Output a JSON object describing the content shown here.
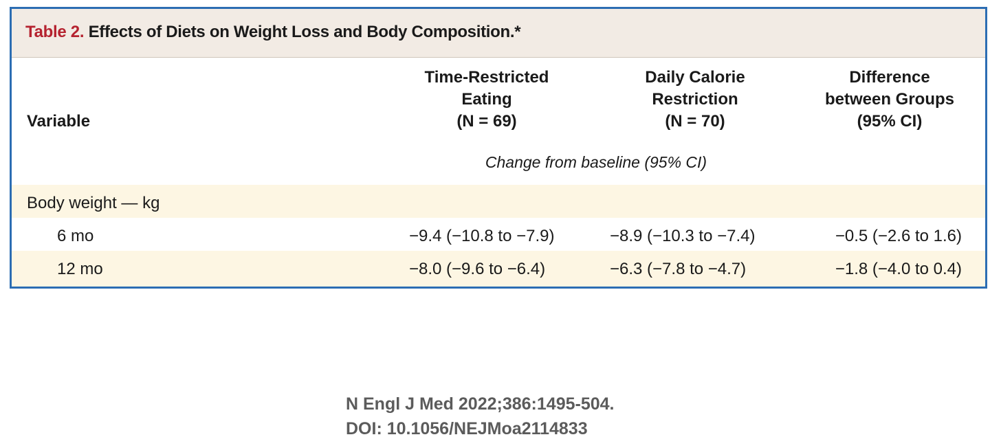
{
  "table": {
    "label": "Table 2.",
    "title": "Effects of Diets on Weight Loss and Body Composition.*",
    "columns": {
      "variable": "Variable",
      "col1": [
        "Time-Restricted",
        "Eating",
        "(N = 69)"
      ],
      "col2": [
        "Daily Calorie",
        "Restriction",
        "(N = 70)"
      ],
      "col3": [
        "Difference",
        "between Groups",
        "(95% CI)"
      ]
    },
    "subheader": "Change from baseline (95% CI)",
    "group_label": "Body weight — kg",
    "rows": [
      {
        "label": "6 mo",
        "col1": "−9.4 (−10.8 to −7.9)",
        "col2": "−8.9 (−10.3 to −7.4)",
        "col3": "−0.5 (−2.6 to 1.6)"
      },
      {
        "label": "12 mo",
        "col1": "−8.0 (−9.6 to −6.4)",
        "col2": "−6.3 (−7.8 to −4.7)",
        "col3": "−1.8 (−4.0 to 0.4)"
      }
    ]
  },
  "citation": {
    "line1": "N Engl J Med 2022;386:1495-504.",
    "line2": "DOI: 10.1056/NEJMoa2114833"
  },
  "colors": {
    "border": "#2c6db3",
    "title_bar": "#f2ebe4",
    "label_red": "#b5222f",
    "row_highlight": "#fdf6e3",
    "citation_text": "#5b5b5b"
  }
}
